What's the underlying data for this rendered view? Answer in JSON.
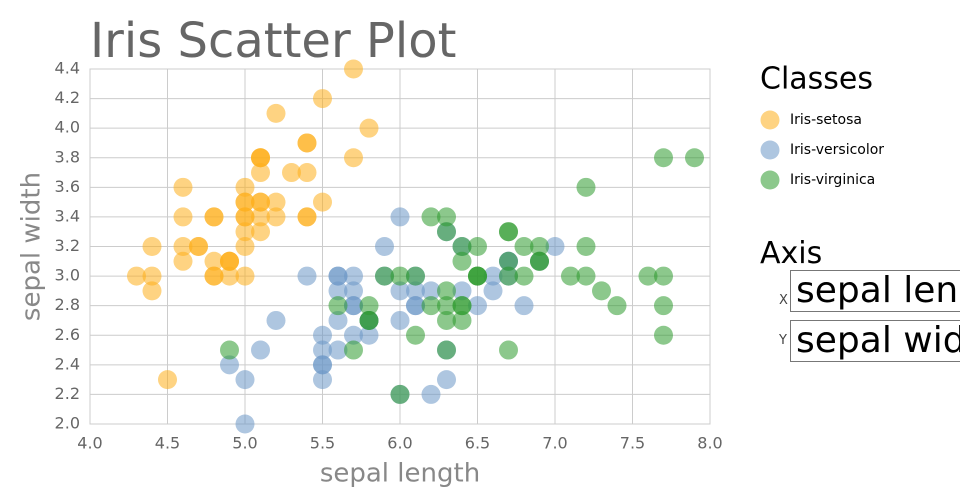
{
  "chart_data": {
    "type": "scatter",
    "title": "Iris Scatter Plot",
    "x_label": "sepal length",
    "y_label": "sepal width",
    "legend_title": "Classes",
    "xlim": [
      4,
      8
    ],
    "ylim": [
      2,
      4.4
    ],
    "xticks": [
      {
        "value": 4,
        "label": "4.0"
      },
      4.5,
      {
        "value": 5,
        "label": "5.0"
      },
      5.5,
      {
        "value": 6,
        "label": "6.0"
      },
      6.5,
      {
        "value": 7,
        "label": "7.0"
      },
      7.5,
      {
        "value": 8,
        "label": "8.0"
      }
    ],
    "yticks": [
      {
        "value": 2,
        "label": "2.0"
      },
      2.2,
      2.4,
      2.6,
      2.8,
      {
        "value": 3,
        "label": "3.0"
      },
      3.2,
      3.4,
      3.6,
      3.8,
      {
        "value": 4,
        "label": "4.0"
      },
      4.2,
      4.4
    ],
    "grid": true,
    "series": [
      {
        "name": "Iris-setosa",
        "color": "#fdae1b",
        "x": [
          5.1,
          4.9,
          4.7,
          4.6,
          5.0,
          5.4,
          4.6,
          5.0,
          4.4,
          4.9,
          5.4,
          4.8,
          4.8,
          4.3,
          5.8,
          5.7,
          5.4,
          5.1,
          5.7,
          5.1,
          5.4,
          5.1,
          4.6,
          5.1,
          4.8,
          5.0,
          5.0,
          5.2,
          5.2,
          4.7,
          4.8,
          5.4,
          5.2,
          5.5,
          4.9,
          5.0,
          5.5,
          4.9,
          4.4,
          5.1,
          5.0,
          4.5,
          4.4,
          5.0,
          5.1,
          4.8,
          5.1,
          4.6,
          5.3,
          5.0
        ],
        "values": [
          3.5,
          3.0,
          3.2,
          3.1,
          3.6,
          3.9,
          3.4,
          3.4,
          2.9,
          3.1,
          3.7,
          3.4,
          3.0,
          3.0,
          4.0,
          4.4,
          3.9,
          3.5,
          3.8,
          3.8,
          3.4,
          3.7,
          3.6,
          3.3,
          3.4,
          3.0,
          3.4,
          3.5,
          3.4,
          3.2,
          3.1,
          3.4,
          4.1,
          4.2,
          3.1,
          3.2,
          3.5,
          3.1,
          3.0,
          3.4,
          3.5,
          2.3,
          3.2,
          3.5,
          3.8,
          3.0,
          3.8,
          3.2,
          3.7,
          3.3
        ]
      },
      {
        "name": "Iris-versicolor",
        "color": "#6b98c6",
        "x": [
          7.0,
          6.4,
          6.9,
          5.5,
          6.5,
          5.7,
          6.3,
          4.9,
          6.6,
          5.2,
          5.0,
          5.9,
          6.0,
          6.1,
          5.6,
          6.7,
          5.6,
          5.8,
          6.2,
          5.6,
          5.9,
          6.1,
          6.3,
          6.1,
          6.4,
          6.6,
          6.8,
          6.7,
          6.0,
          5.7,
          5.5,
          5.5,
          5.8,
          6.0,
          5.4,
          6.0,
          6.7,
          6.3,
          5.6,
          5.5,
          5.5,
          6.1,
          5.8,
          5.0,
          5.6,
          5.7,
          5.7,
          6.2,
          5.1,
          5.7
        ],
        "values": [
          3.2,
          3.2,
          3.1,
          2.3,
          2.8,
          2.8,
          3.3,
          2.4,
          2.9,
          2.7,
          2.0,
          3.0,
          2.2,
          2.9,
          2.9,
          3.1,
          3.0,
          2.7,
          2.2,
          2.5,
          3.2,
          2.8,
          2.5,
          2.8,
          2.9,
          3.0,
          2.8,
          3.0,
          2.9,
          2.6,
          2.4,
          2.4,
          2.7,
          2.7,
          3.0,
          3.4,
          3.1,
          2.3,
          3.0,
          2.5,
          2.6,
          3.0,
          2.6,
          2.3,
          2.7,
          3.0,
          2.9,
          2.9,
          2.5,
          2.8
        ]
      },
      {
        "name": "Iris-virginica",
        "color": "#2e9a2e",
        "x": [
          6.3,
          5.8,
          7.1,
          6.3,
          6.5,
          7.6,
          4.9,
          7.3,
          6.7,
          7.2,
          6.5,
          6.4,
          6.8,
          5.7,
          5.8,
          6.4,
          6.5,
          7.7,
          7.7,
          6.0,
          6.9,
          5.6,
          7.7,
          6.3,
          6.7,
          7.2,
          6.2,
          6.1,
          6.4,
          7.2,
          7.4,
          7.9,
          6.4,
          6.3,
          6.1,
          7.7,
          6.3,
          6.4,
          6.0,
          6.9,
          6.7,
          6.9,
          5.8,
          6.8,
          6.7,
          6.7,
          6.3,
          6.5,
          6.2,
          5.9
        ],
        "values": [
          3.3,
          2.7,
          3.0,
          2.9,
          3.0,
          3.0,
          2.5,
          2.9,
          2.5,
          3.6,
          3.2,
          2.7,
          3.0,
          2.5,
          2.8,
          3.2,
          3.0,
          3.8,
          2.6,
          2.2,
          3.2,
          2.8,
          2.8,
          2.7,
          3.3,
          3.2,
          2.8,
          3.0,
          2.8,
          3.0,
          2.8,
          3.8,
          2.8,
          2.8,
          2.6,
          3.0,
          3.4,
          3.1,
          3.0,
          3.1,
          3.1,
          3.1,
          2.7,
          3.2,
          3.3,
          3.0,
          2.5,
          3.0,
          3.4,
          3.0
        ]
      }
    ]
  },
  "controls": {
    "title": "Axis",
    "x_label": "X",
    "x_value": "sepal length",
    "y_label": "Y",
    "y_value": "sepal width"
  }
}
